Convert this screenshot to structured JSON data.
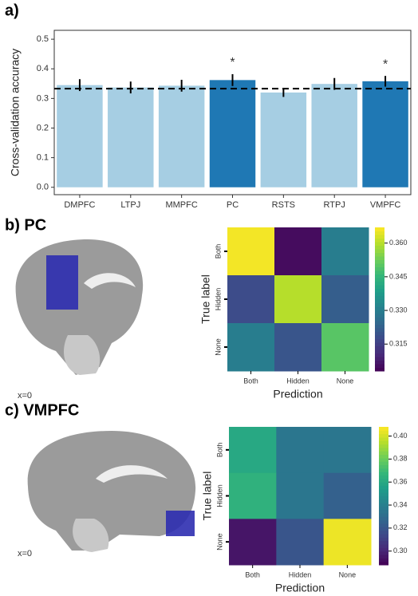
{
  "chart_data": [
    {
      "type": "bar",
      "title": "a)",
      "ylabel": "Cross-validation accuracy",
      "categories": [
        "DMPFC",
        "LTPJ",
        "MMPFC",
        "PC",
        "RSTS",
        "RTPJ",
        "VMPFC"
      ],
      "values": [
        0.345,
        0.337,
        0.343,
        0.362,
        0.32,
        0.349,
        0.358
      ],
      "errors": [
        0.02,
        0.02,
        0.02,
        0.02,
        0.015,
        0.02,
        0.018
      ],
      "colors": [
        "#a6cee3",
        "#a6cee3",
        "#a6cee3",
        "#1f78b4",
        "#a6cee3",
        "#a6cee3",
        "#1f78b4"
      ],
      "reference_line": 0.333,
      "annotations": [
        {
          "x": "PC",
          "text": "*"
        },
        {
          "x": "VMPFC",
          "text": "*"
        }
      ],
      "ylim": [
        -0.025,
        0.53
      ],
      "yticks": [
        {
          "value": 0,
          "label": "0.0"
        },
        0.1,
        0.2,
        0.3,
        0.4,
        0.5
      ]
    },
    {
      "type": "heatmap",
      "title": "b) PC",
      "slice_label": "x=0",
      "colormap": "viridis",
      "xlabel": "Prediction",
      "ylabel": "True label",
      "x_categories": [
        "Both",
        "Hidden",
        "None"
      ],
      "y_categories": [
        "Both",
        "Hidden",
        "None"
      ],
      "values": [
        [
          0.366,
          0.305,
          0.33
        ],
        [
          0.318,
          0.36,
          0.322
        ],
        [
          0.33,
          0.32,
          0.35
        ]
      ],
      "zlim": [
        0.303,
        0.367
      ],
      "zticks": [
        0.315,
        {
          "value": 0.33,
          "label": "0.330"
        },
        0.345,
        {
          "value": 0.36,
          "label": "0.360"
        }
      ]
    },
    {
      "type": "heatmap",
      "title": "c) VMPFC",
      "slice_label": "x=0",
      "colormap": "viridis",
      "xlabel": "Prediction",
      "ylabel": "True label",
      "x_categories": [
        "Both",
        "Hidden",
        "None"
      ],
      "y_categories": [
        "Both",
        "Hidden",
        "None"
      ],
      "values": [
        [
          0.36,
          0.335,
          0.335
        ],
        [
          0.365,
          0.335,
          0.325
        ],
        [
          0.295,
          0.32,
          0.405
        ]
      ],
      "zlim": [
        0.288,
        0.408
      ],
      "zticks": [
        {
          "value": 0.3,
          "label": "0.30"
        },
        0.32,
        0.34,
        0.36,
        0.38,
        {
          "value": 0.4,
          "label": "0.40"
        }
      ]
    }
  ]
}
